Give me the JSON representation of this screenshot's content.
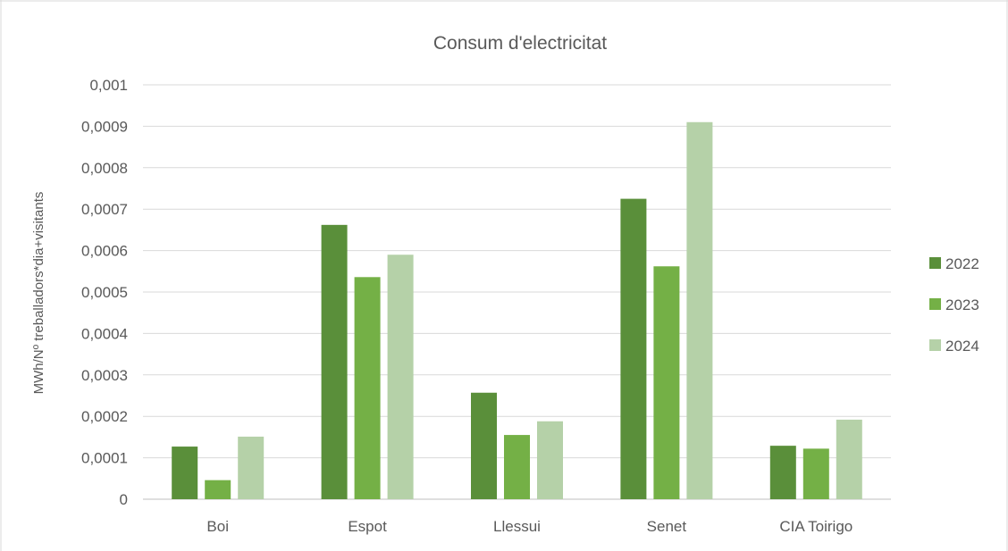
{
  "chart_data": {
    "type": "bar",
    "title": "Consum d'electricitat",
    "xlabel": "",
    "ylabel": "MWh/Nº treballadors*dia+visitants",
    "categories": [
      "Boi",
      "Espot",
      "Llessui",
      "Senet",
      "CIA Toirigo"
    ],
    "series": [
      {
        "name": "2022",
        "color": "#5a8f3a",
        "values": [
          0.000127,
          0.000662,
          0.000257,
          0.000725,
          0.000129
        ]
      },
      {
        "name": "2023",
        "color": "#74b046",
        "values": [
          4.6e-05,
          0.000536,
          0.000155,
          0.000562,
          0.000122
        ]
      },
      {
        "name": "2024",
        "color": "#b5d1a8",
        "values": [
          0.000151,
          0.00059,
          0.000188,
          0.00091,
          0.000192
        ]
      }
    ],
    "ylim": [
      0,
      0.001
    ],
    "yticks": [
      "0",
      "0,0001",
      "0,0002",
      "0,0003",
      "0,0004",
      "0,0005",
      "0,0006",
      "0,0007",
      "0,0008",
      "0,0009",
      "0,001"
    ],
    "grid": true,
    "legend_position": "right",
    "gridline_color": "#d9d9d9",
    "text_color": "#595959"
  }
}
